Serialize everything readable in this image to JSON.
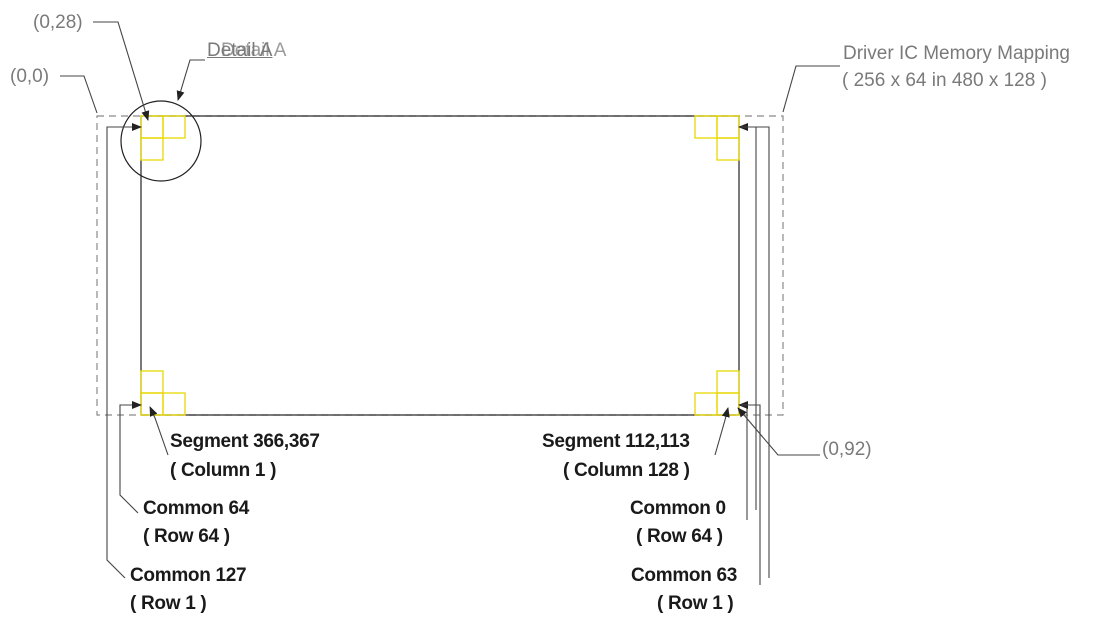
{
  "diagram": {
    "coord_top_left_origin": "(0,0)",
    "coord_first_pixel": "(0,28)",
    "coord_last_pixel": "(0,92)",
    "detail_label": "Detail A",
    "detail_label_overlap": "Detail A",
    "memory_mapping_title": "Driver IC Memory Mapping",
    "memory_mapping_size": "( 256 x 64 in 480 x 128 )",
    "left_segment": {
      "label": "Segment 366,367",
      "sub": "( Column 1 )"
    },
    "right_segment": {
      "label": "Segment 112,113",
      "sub": "( Column 128 )"
    },
    "left_common_inner": {
      "label": "Common 64",
      "sub": "( Row 64 )"
    },
    "right_common_inner": {
      "label": "Common 0",
      "sub": "( Row 64 )"
    },
    "left_common_outer": {
      "label": "Common 127",
      "sub": "( Row 1 )"
    },
    "right_common_outer": {
      "label": "Common 63",
      "sub": "( Row 1 )"
    }
  },
  "colors": {
    "line": "#222222",
    "dashed": "#8a8a8a",
    "pixel_box": "#e8d800",
    "leader": "#555555"
  }
}
